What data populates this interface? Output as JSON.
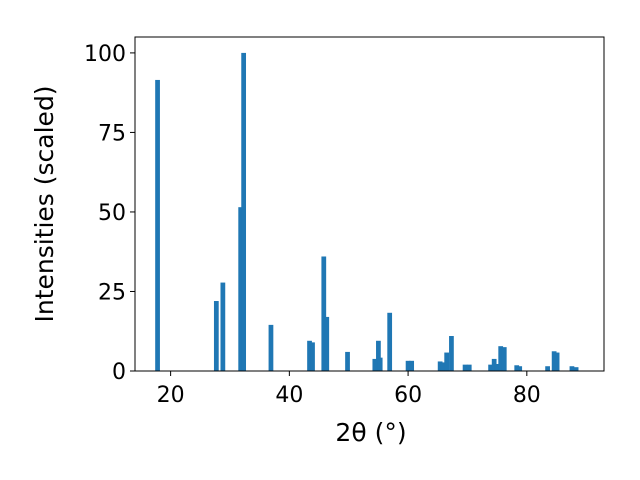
{
  "chart_data": {
    "type": "bar",
    "title": "",
    "xlabel": "2θ (°)",
    "ylabel": "Intensities (scaled)",
    "xlim": [
      14,
      93
    ],
    "ylim": [
      0,
      105
    ],
    "xticks": [
      20,
      40,
      60,
      80
    ],
    "yticks": [
      0,
      25,
      50,
      75,
      100
    ],
    "grid": false,
    "bar_color": "#1f77b4",
    "bar_width_deg": 0.8,
    "bars": [
      {
        "x": 17.8,
        "y": 91.5
      },
      {
        "x": 27.7,
        "y": 22.0
      },
      {
        "x": 28.8,
        "y": 27.8
      },
      {
        "x": 31.8,
        "y": 51.5
      },
      {
        "x": 32.3,
        "y": 100.0
      },
      {
        "x": 36.9,
        "y": 14.5
      },
      {
        "x": 43.4,
        "y": 9.5
      },
      {
        "x": 43.9,
        "y": 9.0
      },
      {
        "x": 45.8,
        "y": 36.0
      },
      {
        "x": 46.3,
        "y": 17.0
      },
      {
        "x": 49.8,
        "y": 6.0
      },
      {
        "x": 54.4,
        "y": 3.8
      },
      {
        "x": 55.0,
        "y": 9.5
      },
      {
        "x": 55.3,
        "y": 4.2
      },
      {
        "x": 56.9,
        "y": 18.3
      },
      {
        "x": 60.0,
        "y": 3.2
      },
      {
        "x": 60.6,
        "y": 3.2
      },
      {
        "x": 65.4,
        "y": 3.0
      },
      {
        "x": 65.9,
        "y": 2.7
      },
      {
        "x": 66.5,
        "y": 5.8
      },
      {
        "x": 67.3,
        "y": 11.0
      },
      {
        "x": 69.6,
        "y": 2.0
      },
      {
        "x": 70.3,
        "y": 2.0
      },
      {
        "x": 73.9,
        "y": 2.0
      },
      {
        "x": 74.5,
        "y": 3.8
      },
      {
        "x": 74.9,
        "y": 2.2
      },
      {
        "x": 75.6,
        "y": 7.8
      },
      {
        "x": 76.2,
        "y": 7.5
      },
      {
        "x": 78.3,
        "y": 1.8
      },
      {
        "x": 78.8,
        "y": 1.5
      },
      {
        "x": 83.5,
        "y": 1.5
      },
      {
        "x": 84.6,
        "y": 6.2
      },
      {
        "x": 85.1,
        "y": 5.8
      },
      {
        "x": 87.6,
        "y": 1.5
      },
      {
        "x": 88.3,
        "y": 1.2
      }
    ]
  }
}
